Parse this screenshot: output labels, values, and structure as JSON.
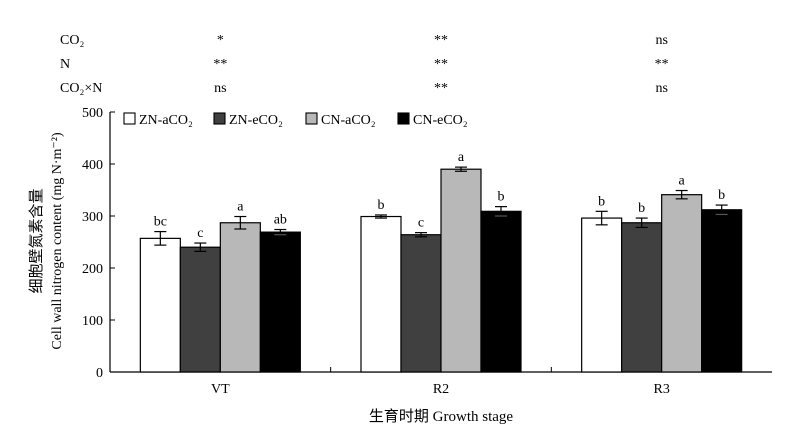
{
  "chart_data": {
    "type": "bar",
    "categories": [
      "VT",
      "R2",
      "R3"
    ],
    "series": [
      {
        "name": "ZN-aCO₂",
        "color": "#ffffff",
        "values": [
          257,
          299,
          296
        ],
        "errors": [
          13,
          3,
          13
        ],
        "letters": [
          "bc",
          "b",
          "b"
        ]
      },
      {
        "name": "ZN-eCO₂",
        "color": "#404040",
        "values": [
          240,
          264,
          287
        ],
        "errors": [
          8,
          4,
          9
        ],
        "letters": [
          "c",
          "c",
          "b"
        ]
      },
      {
        "name": "CN-aCO₂",
        "color": "#b8b8b8",
        "values": [
          287,
          390,
          341
        ],
        "errors": [
          12,
          4,
          8
        ],
        "letters": [
          "a",
          "a",
          "a"
        ]
      },
      {
        "name": "CN-eCO₂",
        "color": "#000000",
        "values": [
          269,
          309,
          312
        ],
        "errors": [
          5,
          9,
          9
        ],
        "letters": [
          "ab",
          "b",
          "b"
        ]
      }
    ],
    "ylabel_cn": "细胞壁氮素含量",
    "ylabel_en": "Cell wall nitrogen content (mg N·m⁻²)",
    "xlabel": "生育时期 Growth stage",
    "ylim": [
      0,
      500
    ],
    "yticks": [
      0,
      100,
      200,
      300,
      400,
      500
    ],
    "grid": false,
    "legend_position": "top-left",
    "significance": {
      "rows": [
        {
          "label": "CO₂",
          "values": [
            "*",
            "**",
            "ns"
          ]
        },
        {
          "label": "N",
          "values": [
            "**",
            "**",
            "**"
          ]
        },
        {
          "label": "CO₂×N",
          "values": [
            "ns",
            "**",
            "ns"
          ]
        }
      ]
    }
  }
}
